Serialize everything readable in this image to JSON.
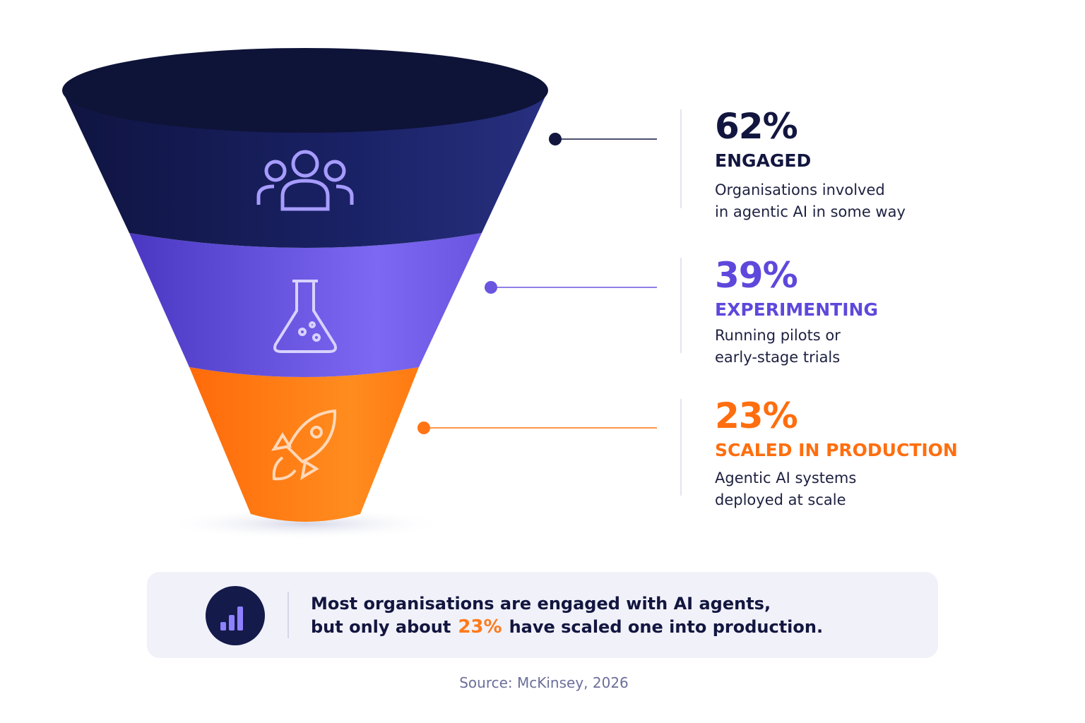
{
  "stages": [
    {
      "value": "62%",
      "label": "ENGAGED",
      "description": [
        "Organisations involved",
        "in agentic AI in some way"
      ]
    },
    {
      "value": "39%",
      "label": "EXPERIMENTING",
      "description": [
        "Running pilots or",
        "early-stage trials"
      ]
    },
    {
      "value": "23%",
      "label": "SCALED IN PRODUCTION",
      "description": [
        "Agentic AI systems",
        "deployed at scale"
      ]
    }
  ],
  "summary": {
    "line1": "Most organisations are engaged with AI agents,",
    "line2_before": "but only about",
    "highlight": "23%",
    "line2_after": "have scaled one into production."
  },
  "source": "Source: McKinsey, 2026"
}
